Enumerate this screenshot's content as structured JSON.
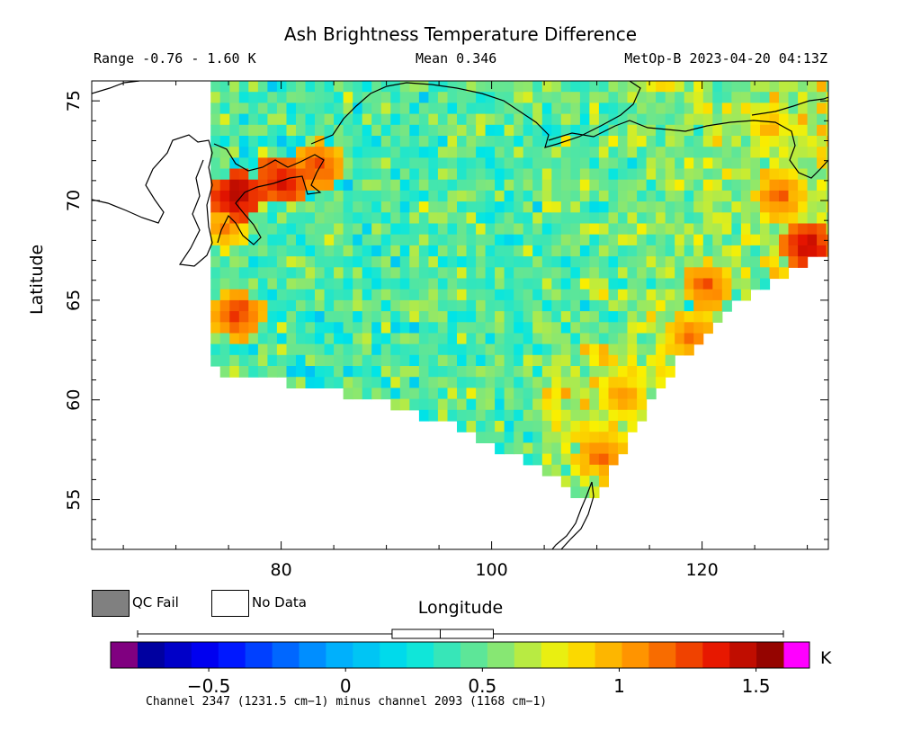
{
  "header": {
    "title": "Ash Brightness Temperature Difference",
    "range_text": "Range -0.76 - 1.60 K",
    "mean_text": "Mean 0.346",
    "satellite_time": "MetOp-B 2023-04-20 04:13Z"
  },
  "legend": {
    "qc_fail_label": "QC Fail",
    "qc_fail_color": "#808080",
    "no_data_label": "No Data",
    "no_data_color": "#ffffff"
  },
  "colorbar": {
    "unit": "K",
    "min": -0.76,
    "max": 1.6,
    "under_color": "#800080",
    "over_color": "#ff00ff",
    "ticks": [
      {
        "value": -0.5,
        "label": "−0.5"
      },
      {
        "value": 0,
        "label": "0"
      },
      {
        "value": 0.5,
        "label": "0.5"
      },
      {
        "value": 1,
        "label": "1"
      },
      {
        "value": 1.5,
        "label": "1.5"
      }
    ],
    "boxplot": {
      "min": -0.76,
      "q1": 0.17,
      "median": 0.346,
      "q3": 0.54,
      "max": 1.6
    }
  },
  "footnote": "Channel 2347 (1231.5 cm−1) minus channel 2093 (1168 cm−1)",
  "chart_data": {
    "type": "heatmap",
    "title": "Ash Brightness Temperature Difference",
    "xlabel": "Longitude",
    "ylabel": "Latitude",
    "xlim": [
      62,
      132
    ],
    "ylim": [
      52.5,
      76
    ],
    "xticks": [
      {
        "value": 80,
        "label": "80"
      },
      {
        "value": 100,
        "label": "100"
      },
      {
        "value": 120,
        "label": "120"
      }
    ],
    "yticks": [
      {
        "value": 55,
        "label": "55"
      },
      {
        "value": 60,
        "label": "60"
      },
      {
        "value": 65,
        "label": "65"
      },
      {
        "value": 70,
        "label": "70"
      },
      {
        "value": 75,
        "label": "75"
      }
    ],
    "value_range": [
      -0.76,
      1.6
    ],
    "mean": 0.346,
    "swath": {
      "top_lat": 76,
      "left_edge": [
        [
          73.3,
          76
        ],
        [
          73.3,
          70
        ],
        [
          73.3,
          66
        ],
        [
          73.2,
          61.9
        ]
      ],
      "bottom_edge": [
        [
          73.2,
          61.9
        ],
        [
          80,
          61.3
        ],
        [
          88,
          60.5
        ],
        [
          96,
          59.2
        ],
        [
          102,
          57.6
        ],
        [
          106,
          56.4
        ],
        [
          109.5,
          55.2
        ]
      ],
      "right_edge": [
        [
          109.5,
          55.2
        ],
        [
          112,
          57.4
        ],
        [
          115,
          60.2
        ],
        [
          118,
          62.5
        ],
        [
          122,
          64.6
        ],
        [
          126,
          66.2
        ],
        [
          130,
          67.3
        ],
        [
          132,
          67.6
        ]
      ]
    },
    "hotspots": [
      {
        "lon": 75.5,
        "lat": 70.5,
        "value": 1.55
      },
      {
        "lon": 74.2,
        "lat": 69.0,
        "value": 1.15
      },
      {
        "lon": 79.5,
        "lat": 71.3,
        "value": 1.45
      },
      {
        "lon": 83.0,
        "lat": 72.0,
        "value": 1.3
      },
      {
        "lon": 75.5,
        "lat": 64.5,
        "value": 1.3
      },
      {
        "lon": 129.5,
        "lat": 68.0,
        "value": 1.5
      },
      {
        "lon": 120.0,
        "lat": 66.0,
        "value": 1.25
      },
      {
        "lon": 118.5,
        "lat": 63.5,
        "value": 1.2
      },
      {
        "lon": 110.0,
        "lat": 57.5,
        "value": 1.2
      },
      {
        "lon": 112.0,
        "lat": 60.5,
        "value": 1.1
      },
      {
        "lon": 127.0,
        "lat": 70.5,
        "value": 1.2
      },
      {
        "lon": 126.0,
        "lat": 74.0,
        "value": 1.0
      }
    ]
  }
}
